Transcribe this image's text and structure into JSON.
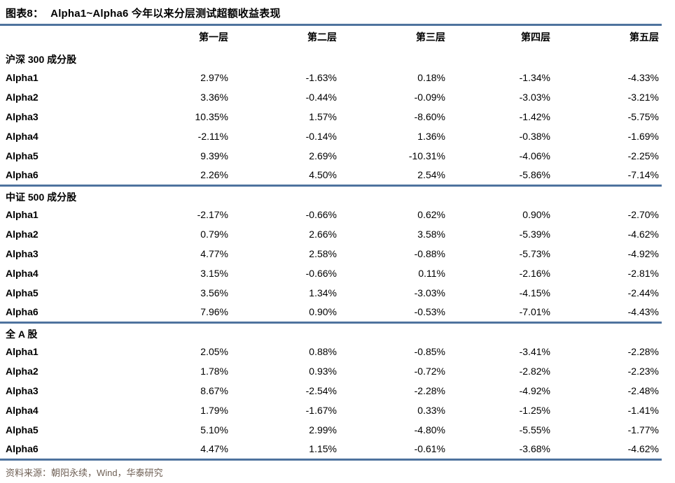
{
  "title": {
    "tag": "图表8：",
    "text": "Alpha1~Alpha6 今年以来分层测试超额收益表现"
  },
  "columns": [
    "第一层",
    "第二层",
    "第三层",
    "第四层",
    "第五层"
  ],
  "sections": [
    {
      "name": "沪深 300 成分股",
      "rows": [
        {
          "label": "Alpha1",
          "values": [
            "2.97%",
            "-1.63%",
            "0.18%",
            "-1.34%",
            "-4.33%"
          ]
        },
        {
          "label": "Alpha2",
          "values": [
            "3.36%",
            "-0.44%",
            "-0.09%",
            "-3.03%",
            "-3.21%"
          ]
        },
        {
          "label": "Alpha3",
          "values": [
            "10.35%",
            "1.57%",
            "-8.60%",
            "-1.42%",
            "-5.75%"
          ]
        },
        {
          "label": "Alpha4",
          "values": [
            "-2.11%",
            "-0.14%",
            "1.36%",
            "-0.38%",
            "-1.69%"
          ]
        },
        {
          "label": "Alpha5",
          "values": [
            "9.39%",
            "2.69%",
            "-10.31%",
            "-4.06%",
            "-2.25%"
          ]
        },
        {
          "label": "Alpha6",
          "values": [
            "2.26%",
            "4.50%",
            "2.54%",
            "-5.86%",
            "-7.14%"
          ]
        }
      ]
    },
    {
      "name": "中证 500 成分股",
      "rows": [
        {
          "label": "Alpha1",
          "values": [
            "-2.17%",
            "-0.66%",
            "0.62%",
            "0.90%",
            "-2.70%"
          ]
        },
        {
          "label": "Alpha2",
          "values": [
            "0.79%",
            "2.66%",
            "3.58%",
            "-5.39%",
            "-4.62%"
          ]
        },
        {
          "label": "Alpha3",
          "values": [
            "4.77%",
            "2.58%",
            "-0.88%",
            "-5.73%",
            "-4.92%"
          ]
        },
        {
          "label": "Alpha4",
          "values": [
            "3.15%",
            "-0.66%",
            "0.11%",
            "-2.16%",
            "-2.81%"
          ]
        },
        {
          "label": "Alpha5",
          "values": [
            "3.56%",
            "1.34%",
            "-3.03%",
            "-4.15%",
            "-2.44%"
          ]
        },
        {
          "label": "Alpha6",
          "values": [
            "7.96%",
            "0.90%",
            "-0.53%",
            "-7.01%",
            "-4.43%"
          ]
        }
      ]
    },
    {
      "name": "全 A 股",
      "rows": [
        {
          "label": "Alpha1",
          "values": [
            "2.05%",
            "0.88%",
            "-0.85%",
            "-3.41%",
            "-2.28%"
          ]
        },
        {
          "label": "Alpha2",
          "values": [
            "1.78%",
            "0.93%",
            "-0.72%",
            "-2.82%",
            "-2.23%"
          ]
        },
        {
          "label": "Alpha3",
          "values": [
            "8.67%",
            "-2.54%",
            "-2.28%",
            "-4.92%",
            "-2.48%"
          ]
        },
        {
          "label": "Alpha4",
          "values": [
            "1.79%",
            "-1.67%",
            "0.33%",
            "-1.25%",
            "-1.41%"
          ]
        },
        {
          "label": "Alpha5",
          "values": [
            "5.10%",
            "2.99%",
            "-4.80%",
            "-5.55%",
            "-1.77%"
          ]
        },
        {
          "label": "Alpha6",
          "values": [
            "4.47%",
            "1.15%",
            "-0.61%",
            "-3.68%",
            "-4.62%"
          ]
        }
      ]
    }
  ],
  "footer": {
    "source": "资料来源：朝阳永续，Wind，华泰研究"
  },
  "colors": {
    "accent_line": "#4e739e",
    "source_text": "#6f6055"
  }
}
